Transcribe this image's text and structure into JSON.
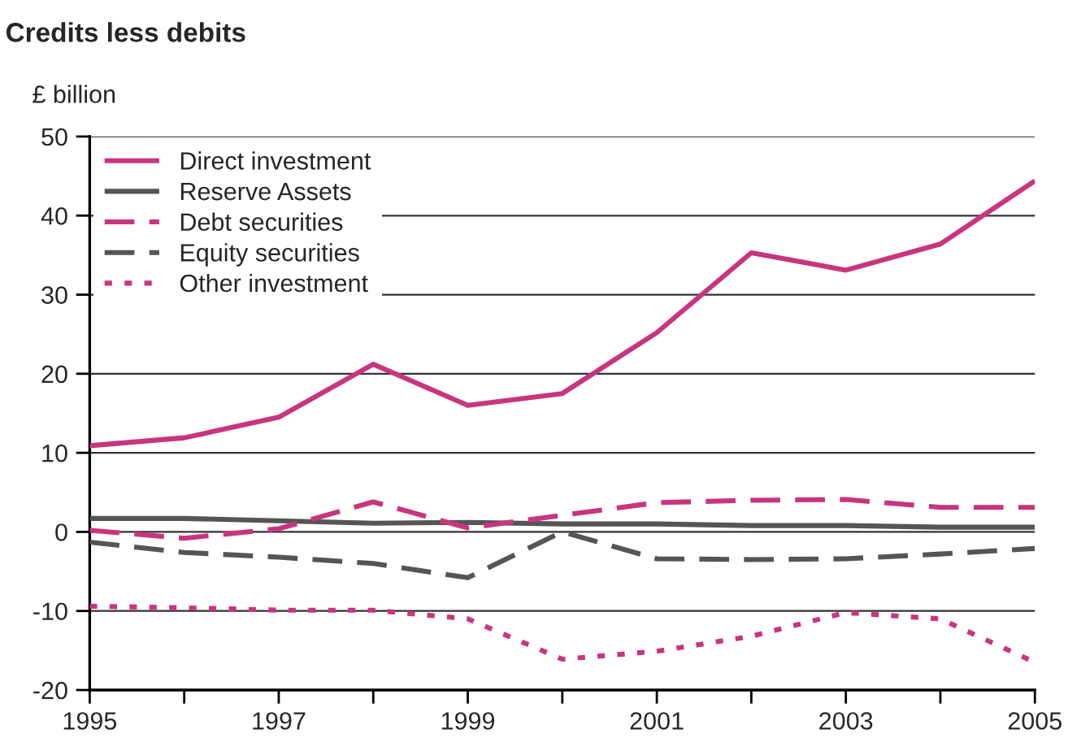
{
  "chart_data": {
    "type": "line",
    "title": "Credits less debits",
    "ylabel": "£ billion",
    "x": [
      1995,
      1996,
      1997,
      1998,
      1999,
      2000,
      2001,
      2002,
      2003,
      2004,
      2005
    ],
    "series": [
      {
        "name": "Direct investment",
        "color": "#c8357f",
        "line_style": "solid",
        "values": [
          10.9,
          11.9,
          14.5,
          21.2,
          16.0,
          17.5,
          25.2,
          35.3,
          33.1,
          36.4,
          44.4
        ]
      },
      {
        "name": "Reserve Assets",
        "color": "#555555",
        "line_style": "solid",
        "values": [
          1.7,
          1.7,
          1.4,
          1.1,
          1.2,
          1.0,
          1.0,
          0.8,
          0.8,
          0.6,
          0.6
        ]
      },
      {
        "name": "Debt securities",
        "color": "#c8357f",
        "line_style": "dashed",
        "values": [
          0.2,
          -0.8,
          0.4,
          3.8,
          0.5,
          2.1,
          3.7,
          4.0,
          4.1,
          3.1,
          3.1
        ]
      },
      {
        "name": "Equity securities",
        "color": "#555555",
        "line_style": "dashed",
        "values": [
          -1.3,
          -2.6,
          -3.2,
          -4.0,
          -5.8,
          0.0,
          -3.4,
          -3.5,
          -3.4,
          -2.8,
          -2.1
        ]
      },
      {
        "name": "Other investment",
        "color": "#c8357f",
        "line_style": "dotted",
        "values": [
          -9.4,
          -9.6,
          -9.9,
          -9.9,
          -11.0,
          -16.1,
          -15.1,
          -13.2,
          -10.2,
          -11.0,
          -16.5
        ]
      }
    ],
    "xlim": [
      1995,
      2005
    ],
    "xticks": [
      1995,
      {
        "value": 1996,
        "label": null
      },
      1997,
      {
        "value": 1998,
        "label": null
      },
      1999,
      {
        "value": 2000,
        "label": null
      },
      2001,
      {
        "value": 2002,
        "label": null
      },
      2003,
      {
        "value": 2004,
        "label": null
      },
      2005
    ],
    "ylim": [
      -20,
      50
    ],
    "yticks": [
      -20,
      -10,
      0,
      10,
      20,
      30,
      40,
      50
    ],
    "grid": "y",
    "legend": "top left",
    "marker": "none"
  }
}
